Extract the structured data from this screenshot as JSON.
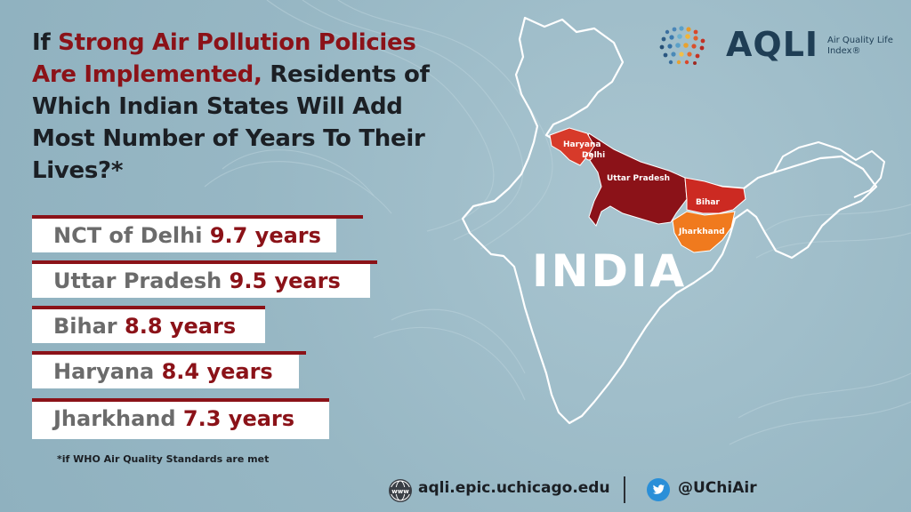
{
  "headline": {
    "pre": "If ",
    "highlight": "Strong Air Pollution Policies Are Implemented,",
    "post": " Residents of Which Indian States Will Add Most Number of Years To Their Lives?*"
  },
  "rankings": [
    {
      "state": "NCT of Delhi",
      "value": "9.7 years"
    },
    {
      "state": "Uttar Pradesh",
      "value": "9.5 years"
    },
    {
      "state": "Bihar",
      "value": "8.8 years"
    },
    {
      "state": "Haryana",
      "value": "8.4 years"
    },
    {
      "state": "Jharkhand ",
      "value": "7.3 years"
    }
  ],
  "footnote": "*if WHO Air Quality Standards are met",
  "logo": {
    "name": "AQLI",
    "subtitle": "Air Quality Life Index®"
  },
  "map": {
    "country": "INDIA",
    "states": {
      "haryana": "Haryana",
      "delhi": "Delhi",
      "uttar_pradesh": "Uttar Pradesh",
      "bihar": "Bihar",
      "jharkhand": "Jharkhand"
    },
    "colors": {
      "uttar_pradesh": "#8b1218",
      "haryana": "#d73a2a",
      "bihar": "#cc2a22",
      "jharkhand": "#f07a1e",
      "outline": "#ffffff"
    }
  },
  "footer": {
    "website": "aqli.epic.uchicago.edu",
    "web_icon": "globe-www-icon",
    "twitter_handle": "@UChiAir",
    "twitter_icon": "twitter-bird-icon"
  },
  "colors": {
    "accent": "#8b1218",
    "background": "#97b7c4",
    "text_dark": "#1b1f24",
    "text_grey": "#6b6b6b"
  }
}
